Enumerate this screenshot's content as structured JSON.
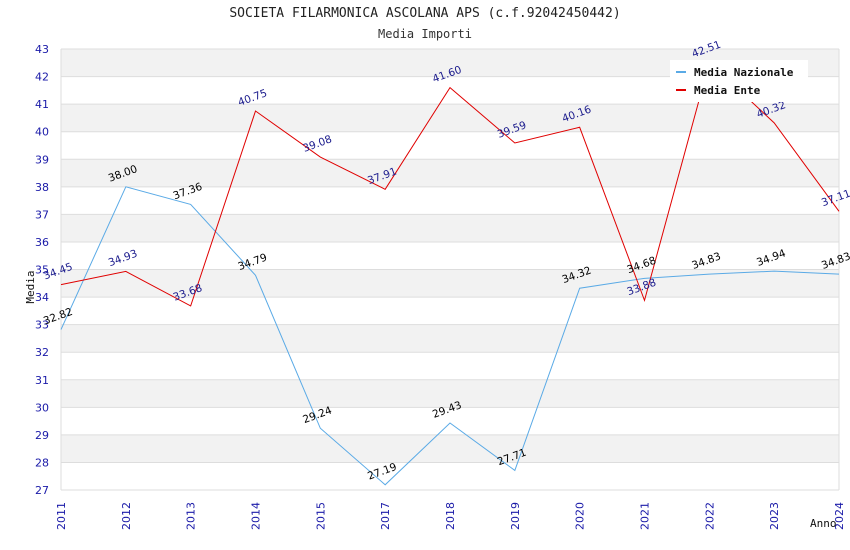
{
  "header": {
    "title": "SOCIETA FILARMONICA ASCOLANA APS (c.f.92042450442)",
    "subtitle": "Media Importi"
  },
  "chart_data": {
    "type": "line",
    "title": "SOCIETA FILARMONICA ASCOLANA APS (c.f.92042450442)",
    "subtitle": "Media Importi",
    "xlabel": "Anno",
    "ylabel": "Media",
    "categories": [
      "2011",
      "2012",
      "2013",
      "2014",
      "2015",
      "2017",
      "2018",
      "2019",
      "2020",
      "2021",
      "2022",
      "2023",
      "2024"
    ],
    "ylim": [
      27,
      43
    ],
    "yticks": [
      27,
      28,
      29,
      30,
      31,
      32,
      33,
      34,
      35,
      36,
      37,
      38,
      39,
      40,
      41,
      42,
      43
    ],
    "grid": true,
    "legend_position": "top-right",
    "series": [
      {
        "name": "Media Nazionale",
        "color": "#5aaae6",
        "label_color": "#000000",
        "values": [
          32.82,
          38.0,
          37.36,
          34.79,
          29.24,
          27.19,
          29.43,
          27.71,
          34.32,
          34.68,
          34.83,
          34.94,
          34.83
        ],
        "labels": [
          "32.82",
          "38.00",
          "37.36",
          "34.79",
          "29.24",
          "27.19",
          "29.43",
          "27.71",
          "34.32",
          "34.68",
          "34.83",
          "34.94",
          "34.83"
        ]
      },
      {
        "name": "Media Ente",
        "color": "#e00000",
        "label_color": "#1a1a8c",
        "values": [
          34.45,
          34.93,
          33.68,
          40.75,
          39.08,
          37.91,
          41.6,
          39.59,
          40.16,
          33.88,
          42.51,
          40.32,
          37.11
        ],
        "labels": [
          "34.45",
          "34.93",
          "33.68",
          "40.75",
          "39.08",
          "37.91",
          "41.60",
          "39.59",
          "40.16",
          "33.88",
          "42.51",
          "40.32",
          "37.11"
        ]
      }
    ]
  }
}
